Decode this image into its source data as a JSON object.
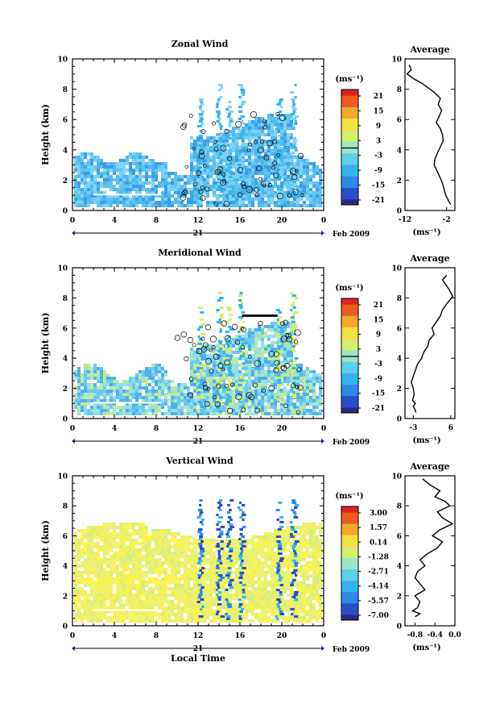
{
  "chart_data": [
    {
      "type": "heatmap",
      "title": "Zonal Wind",
      "ylabel": "Height (km)",
      "yticks": [
        0,
        2,
        4,
        6,
        8,
        10
      ],
      "ylim": [
        0,
        10
      ],
      "xlim": [
        0,
        24
      ],
      "xtick_labels": [
        "0",
        "4",
        "8",
        "12",
        "16",
        "20",
        "0"
      ],
      "date_label": "21",
      "date_suffix": "Feb 2009",
      "colorbar": {
        "unit_label": "(ms⁻¹)",
        "tick_labels": [
          "21",
          "15",
          "9",
          "3",
          "-3",
          "-9",
          "-15",
          "-21"
        ],
        "zero_line": true
      },
      "average": {
        "title": "Average",
        "xlabel": "(ms⁻¹)",
        "xtick_labels": [
          "-12",
          "-2"
        ],
        "xlim": [
          -12,
          0
        ],
        "x": [
          -11.0,
          -10.5,
          -11.5,
          -10.0,
          -8.0,
          -6.5,
          -5.0,
          -3.5,
          -4.0,
          -3.2,
          -3.8,
          -4.5,
          -3.5,
          -3.0,
          -2.8,
          -3.5,
          -4.2,
          -4.8,
          -5.0,
          -4.3,
          -3.6,
          -3.0,
          -2.6,
          -2.2,
          -1.8,
          -1.5,
          -1.0
        ],
        "y": [
          9.6,
          9.3,
          9.0,
          8.7,
          8.4,
          8.1,
          7.8,
          7.4,
          7.0,
          6.6,
          6.2,
          5.8,
          5.4,
          5.0,
          4.6,
          4.2,
          3.8,
          3.4,
          3.0,
          2.6,
          2.2,
          1.8,
          1.4,
          1.0,
          0.8,
          0.6,
          0.4
        ]
      }
    },
    {
      "type": "heatmap",
      "title": "Meridional Wind",
      "ylabel": "Height (km)",
      "yticks": [
        0,
        2,
        4,
        6,
        8,
        10
      ],
      "ylim": [
        0,
        10
      ],
      "xlim": [
        0,
        24
      ],
      "xtick_labels": [
        "0",
        "4",
        "8",
        "12",
        "16",
        "20",
        "0"
      ],
      "date_label": "21",
      "date_suffix": "Feb 2009",
      "colorbar": {
        "unit_label": "(ms⁻¹)",
        "tick_labels": [
          "21",
          "15",
          "9",
          "3",
          "-3",
          "-9",
          "-15",
          "-21"
        ],
        "zero_line": true
      },
      "average": {
        "title": "Average",
        "xlabel": "(ms⁻¹)",
        "xtick_labels": [
          "-3",
          "6"
        ],
        "xlim": [
          -5,
          7
        ],
        "x": [
          5.0,
          4.0,
          5.5,
          6.5,
          5.0,
          4.0,
          3.5,
          2.5,
          1.5,
          2.0,
          0.8,
          0.5,
          -0.5,
          -1.0,
          -2.0,
          -2.5,
          -3.0,
          -3.5,
          -3.0,
          -2.8,
          -3.2,
          -2.5,
          -3.0,
          -2.6,
          -2.4
        ],
        "y": [
          9.5,
          9.2,
          8.6,
          8.1,
          7.6,
          7.2,
          6.8,
          6.4,
          6.0,
          5.6,
          5.2,
          4.8,
          4.4,
          4.0,
          3.6,
          3.2,
          2.8,
          2.4,
          2.0,
          1.6,
          1.2,
          1.0,
          0.8,
          0.6,
          0.4
        ]
      }
    },
    {
      "type": "heatmap",
      "title": "Vertical Wind",
      "ylabel": "Height (km)",
      "yticks": [
        0,
        2,
        4,
        6,
        8,
        10
      ],
      "ylim": [
        0,
        10
      ],
      "xlim": [
        0,
        24
      ],
      "xtick_labels": [
        "0",
        "4",
        "8",
        "12",
        "16",
        "20",
        "0"
      ],
      "date_label": "21",
      "date_suffix": "Feb 2009",
      "xlabel": "Local Time",
      "colorbar": {
        "unit_label": "(ms⁻¹)",
        "tick_labels": [
          "3.00",
          "1.57",
          "0.14",
          "-1.28",
          "-2.71",
          "-4.14",
          "-5.57",
          "-7.00"
        ],
        "zero_line": false
      },
      "average": {
        "title": "Average",
        "xlabel": "(ms⁻¹)",
        "xtick_labels": [
          "-0.8",
          "-0.4",
          "0.0"
        ],
        "xlim": [
          -1.0,
          0.0
        ],
        "x": [
          -0.65,
          -0.5,
          -0.3,
          -0.4,
          -0.2,
          -0.1,
          -0.35,
          -0.25,
          -0.05,
          -0.3,
          -0.45,
          -0.25,
          -0.35,
          -0.55,
          -0.7,
          -0.6,
          -0.75,
          -0.8,
          -0.7,
          -0.6,
          -0.8,
          -0.7,
          -0.75,
          -0.85,
          -0.7,
          -0.8
        ],
        "y": [
          9.8,
          9.4,
          9.0,
          8.6,
          8.3,
          8.0,
          7.6,
          7.2,
          6.8,
          6.4,
          6.0,
          5.6,
          5.2,
          4.8,
          4.4,
          4.0,
          3.6,
          3.2,
          2.8,
          2.4,
          2.0,
          1.6,
          1.2,
          1.0,
          0.8,
          0.6
        ]
      }
    }
  ],
  "colors": {
    "scale": [
      "#2d2a7e",
      "#2a4dcc",
      "#2c8ae8",
      "#35b5ee",
      "#5fd0ea",
      "#9ee6c8",
      "#d6ee6e",
      "#f2e33c",
      "#f7a828",
      "#ee5a22",
      "#dd2222"
    ],
    "zonal_fill": [
      "#4fb8f0",
      "#7fd2f5",
      "#3aa0e6",
      "#5fc4f0"
    ],
    "meridional_fill": [
      "#6cc8f4",
      "#8fe0f2",
      "#4fb0ea",
      "#b8ec9a"
    ],
    "vertical_fill": [
      "#e8f27a",
      "#f0f06a",
      "#d8f07a",
      "#fff24a"
    ]
  }
}
